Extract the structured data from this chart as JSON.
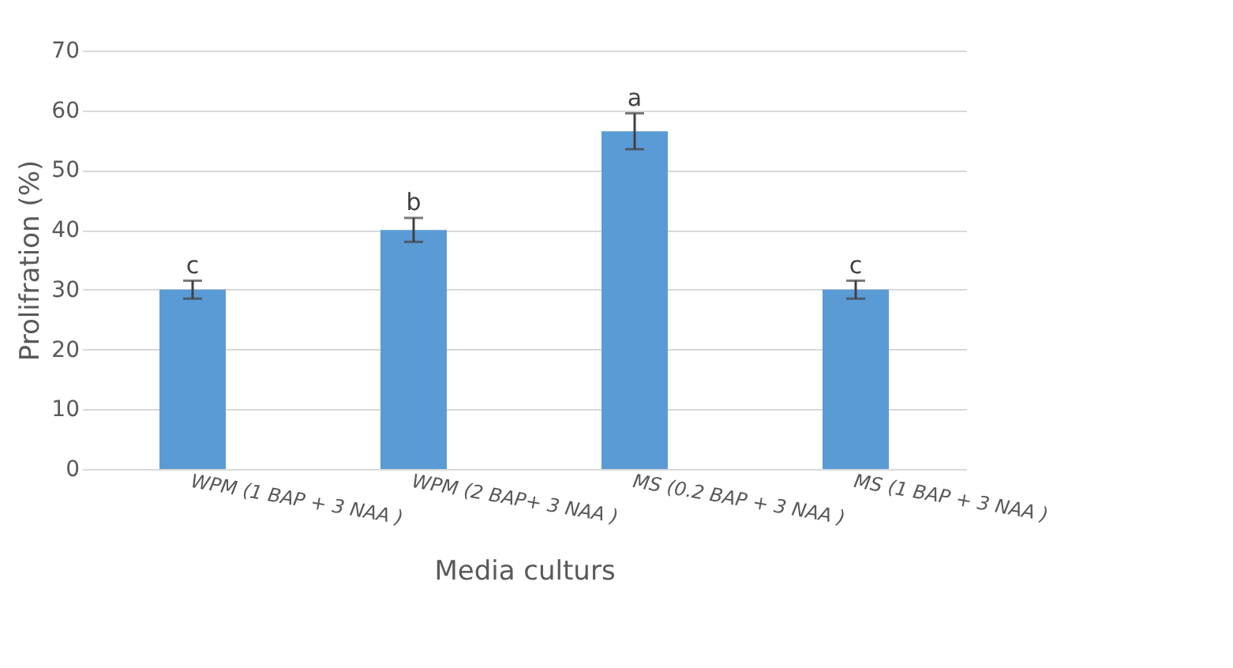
{
  "chart_data": {
    "type": "bar",
    "xlabel": "Media culturs",
    "ylabel": "Prolifration (%)",
    "categories": [
      "WPM (1 BAP + 3 NAA )",
      "WPM (2 BAP+ 3 NAA )",
      "MS (0.2 BAP + 3 NAA )",
      "MS (1 BAP + 3 NAA )"
    ],
    "values": [
      30,
      40,
      56.5,
      30
    ],
    "errors": [
      1.5,
      2,
      3,
      1.5
    ],
    "color": "#5b9bd5",
    "ylim": [
      0,
      70
    ],
    "yticks": [
      0,
      10,
      20,
      30,
      40,
      50,
      60,
      70
    ],
    "grid": "y",
    "annotations": [
      "c",
      "b",
      "a",
      "c"
    ]
  }
}
